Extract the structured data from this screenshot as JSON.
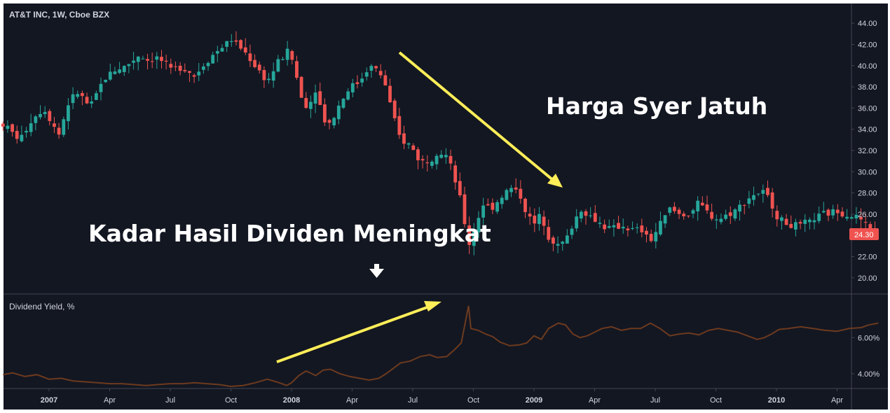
{
  "chart_title": "AT&T INC, 1W, Cboe BZX",
  "annotations": {
    "price_falling": "Harga Syer Jatuh",
    "yield_rising": "Kadar Hasil Dividen Meningkat"
  },
  "colors": {
    "background": "#131722",
    "up": "#26a69a",
    "down": "#ef5350",
    "yield_line": "#6d3a1e",
    "arrow": "#ffee58",
    "grid_border": "#434651",
    "text": "#d1d4dc"
  },
  "current_price_label": "24.30",
  "chart_data": [
    {
      "type": "candlestick",
      "title": "AT&T INC, 1W, Cboe BZX",
      "ylim": [
        19,
        45
      ],
      "yticks": [
        "20.00",
        "22.00",
        "24.00",
        "26.00",
        "28.00",
        "30.00",
        "32.00",
        "34.00",
        "36.00",
        "38.00",
        "40.00",
        "42.00",
        "44.00"
      ],
      "xticks": [
        {
          "label": "2007",
          "t": 0.0,
          "year": true
        },
        {
          "label": "Apr",
          "t": 0.25,
          "year": false
        },
        {
          "label": "Jul",
          "t": 0.5,
          "year": false
        },
        {
          "label": "Oct",
          "t": 0.75,
          "year": false
        },
        {
          "label": "2008",
          "t": 1.0,
          "year": true
        },
        {
          "label": "Apr",
          "t": 1.25,
          "year": false
        },
        {
          "label": "Jul",
          "t": 1.5,
          "year": false
        },
        {
          "label": "Oct",
          "t": 1.75,
          "year": false
        },
        {
          "label": "2009",
          "t": 2.0,
          "year": true
        },
        {
          "label": "Apr",
          "t": 2.25,
          "year": false
        },
        {
          "label": "Jul",
          "t": 2.5,
          "year": false
        },
        {
          "label": "Oct",
          "t": 2.75,
          "year": false
        },
        {
          "label": "2010",
          "t": 3.0,
          "year": true
        },
        {
          "label": "Apr",
          "t": 3.25,
          "year": false
        }
      ],
      "close_path": [
        [
          -0.19,
          34.5
        ],
        [
          -0.12,
          33.0
        ],
        [
          -0.07,
          35.0
        ],
        [
          -0.02,
          36.0
        ],
        [
          0.04,
          33.5
        ],
        [
          0.08,
          36.5
        ],
        [
          0.12,
          37.5
        ],
        [
          0.17,
          36.0
        ],
        [
          0.22,
          38.5
        ],
        [
          0.26,
          39.5
        ],
        [
          0.32,
          40.0
        ],
        [
          0.37,
          41.0
        ],
        [
          0.41,
          40.5
        ],
        [
          0.45,
          40.8
        ],
        [
          0.5,
          39.5
        ],
        [
          0.55,
          40.0
        ],
        [
          0.6,
          39.0
        ],
        [
          0.65,
          40.5
        ],
        [
          0.7,
          41.5
        ],
        [
          0.75,
          42.5
        ],
        [
          0.8,
          41.5
        ],
        [
          0.85,
          40.0
        ],
        [
          0.9,
          38.5
        ],
        [
          0.95,
          40.5
        ],
        [
          0.99,
          41.5
        ],
        [
          1.01,
          40.0
        ],
        [
          1.04,
          37.0
        ],
        [
          1.07,
          36.0
        ],
        [
          1.1,
          38.0
        ],
        [
          1.13,
          35.0
        ],
        [
          1.16,
          34.5
        ],
        [
          1.2,
          36.5
        ],
        [
          1.24,
          38.0
        ],
        [
          1.28,
          38.5
        ],
        [
          1.32,
          40.0
        ],
        [
          1.36,
          39.5
        ],
        [
          1.39,
          38.0
        ],
        [
          1.42,
          35.0
        ],
        [
          1.45,
          33.0
        ],
        [
          1.49,
          32.5
        ],
        [
          1.53,
          31.0
        ],
        [
          1.57,
          31.0
        ],
        [
          1.6,
          32.0
        ],
        [
          1.64,
          31.5
        ],
        [
          1.67,
          29.5
        ],
        [
          1.7,
          27.0
        ],
        [
          1.73,
          23.0
        ],
        [
          1.76,
          25.0
        ],
        [
          1.79,
          27.0
        ],
        [
          1.82,
          26.5
        ],
        [
          1.86,
          27.5
        ],
        [
          1.9,
          28.5
        ],
        [
          1.94,
          28.0
        ],
        [
          1.97,
          26.0
        ],
        [
          2.0,
          25.0
        ],
        [
          2.03,
          26.0
        ],
        [
          2.06,
          24.0
        ],
        [
          2.1,
          23.0
        ],
        [
          2.13,
          23.5
        ],
        [
          2.16,
          25.0
        ],
        [
          2.19,
          26.5
        ],
        [
          2.22,
          26.0
        ],
        [
          2.25,
          25.5
        ],
        [
          2.28,
          25.0
        ],
        [
          2.32,
          24.5
        ],
        [
          2.36,
          25.0
        ],
        [
          2.4,
          24.5
        ],
        [
          2.44,
          24.5
        ],
        [
          2.48,
          23.5
        ],
        [
          2.52,
          25.0
        ],
        [
          2.56,
          26.5
        ],
        [
          2.6,
          26.0
        ],
        [
          2.64,
          26.0
        ],
        [
          2.68,
          27.0
        ],
        [
          2.72,
          26.0
        ],
        [
          2.76,
          25.5
        ],
        [
          2.8,
          26.0
        ],
        [
          2.84,
          26.5
        ],
        [
          2.88,
          27.5
        ],
        [
          2.92,
          28.0
        ],
        [
          2.95,
          28.0
        ],
        [
          2.98,
          27.0
        ],
        [
          3.01,
          25.5
        ],
        [
          3.05,
          25.0
        ],
        [
          3.1,
          24.8
        ],
        [
          3.15,
          25.5
        ],
        [
          3.2,
          26.0
        ],
        [
          3.25,
          26.3
        ],
        [
          3.3,
          26.0
        ],
        [
          3.35,
          25.5
        ],
        [
          3.38,
          24.6
        ],
        [
          3.42,
          24.3
        ]
      ]
    },
    {
      "type": "line",
      "title": "Dividend Yield, %",
      "ylim": [
        3.3,
        8.1
      ],
      "yticks": [
        "4.00%",
        "6.00%"
      ],
      "series": [
        {
          "name": "Dividend Yield, %",
          "points": [
            [
              -0.19,
              3.95
            ],
            [
              -0.15,
              4.05
            ],
            [
              -0.1,
              3.85
            ],
            [
              -0.05,
              3.95
            ],
            [
              0.0,
              3.7
            ],
            [
              0.05,
              3.75
            ],
            [
              0.1,
              3.6
            ],
            [
              0.15,
              3.55
            ],
            [
              0.2,
              3.5
            ],
            [
              0.25,
              3.45
            ],
            [
              0.3,
              3.45
            ],
            [
              0.35,
              3.4
            ],
            [
              0.4,
              3.35
            ],
            [
              0.45,
              3.4
            ],
            [
              0.5,
              3.45
            ],
            [
              0.55,
              3.45
            ],
            [
              0.6,
              3.5
            ],
            [
              0.65,
              3.45
            ],
            [
              0.7,
              3.4
            ],
            [
              0.75,
              3.3
            ],
            [
              0.8,
              3.35
            ],
            [
              0.85,
              3.5
            ],
            [
              0.9,
              3.7
            ],
            [
              0.95,
              3.5
            ],
            [
              0.98,
              3.35
            ],
            [
              1.0,
              3.5
            ],
            [
              1.03,
              3.9
            ],
            [
              1.06,
              4.15
            ],
            [
              1.1,
              3.9
            ],
            [
              1.13,
              4.2
            ],
            [
              1.16,
              4.25
            ],
            [
              1.2,
              4.0
            ],
            [
              1.24,
              3.85
            ],
            [
              1.28,
              3.75
            ],
            [
              1.32,
              3.65
            ],
            [
              1.36,
              3.75
            ],
            [
              1.39,
              4.0
            ],
            [
              1.42,
              4.3
            ],
            [
              1.45,
              4.6
            ],
            [
              1.49,
              4.7
            ],
            [
              1.53,
              4.95
            ],
            [
              1.57,
              5.05
            ],
            [
              1.6,
              4.9
            ],
            [
              1.64,
              4.95
            ],
            [
              1.67,
              5.3
            ],
            [
              1.7,
              5.7
            ],
            [
              1.73,
              7.75
            ],
            [
              1.74,
              6.5
            ],
            [
              1.77,
              6.4
            ],
            [
              1.8,
              6.2
            ],
            [
              1.83,
              6.05
            ],
            [
              1.86,
              5.75
            ],
            [
              1.9,
              5.55
            ],
            [
              1.94,
              5.6
            ],
            [
              1.97,
              5.7
            ],
            [
              2.0,
              6.1
            ],
            [
              2.03,
              5.9
            ],
            [
              2.06,
              6.5
            ],
            [
              2.1,
              6.8
            ],
            [
              2.13,
              6.7
            ],
            [
              2.16,
              6.2
            ],
            [
              2.19,
              6.0
            ],
            [
              2.22,
              6.1
            ],
            [
              2.25,
              6.3
            ],
            [
              2.28,
              6.5
            ],
            [
              2.32,
              6.6
            ],
            [
              2.36,
              6.4
            ],
            [
              2.4,
              6.5
            ],
            [
              2.44,
              6.5
            ],
            [
              2.48,
              6.8
            ],
            [
              2.52,
              6.5
            ],
            [
              2.56,
              6.1
            ],
            [
              2.6,
              6.2
            ],
            [
              2.64,
              6.25
            ],
            [
              2.68,
              6.15
            ],
            [
              2.72,
              6.4
            ],
            [
              2.76,
              6.5
            ],
            [
              2.8,
              6.4
            ],
            [
              2.84,
              6.3
            ],
            [
              2.88,
              6.1
            ],
            [
              2.92,
              5.9
            ],
            [
              2.95,
              6.0
            ],
            [
              2.98,
              6.2
            ],
            [
              3.01,
              6.45
            ],
            [
              3.05,
              6.5
            ],
            [
              3.1,
              6.6
            ],
            [
              3.15,
              6.5
            ],
            [
              3.2,
              6.4
            ],
            [
              3.25,
              6.35
            ],
            [
              3.3,
              6.5
            ],
            [
              3.35,
              6.55
            ],
            [
              3.38,
              6.7
            ],
            [
              3.42,
              6.8
            ]
          ]
        }
      ]
    }
  ]
}
